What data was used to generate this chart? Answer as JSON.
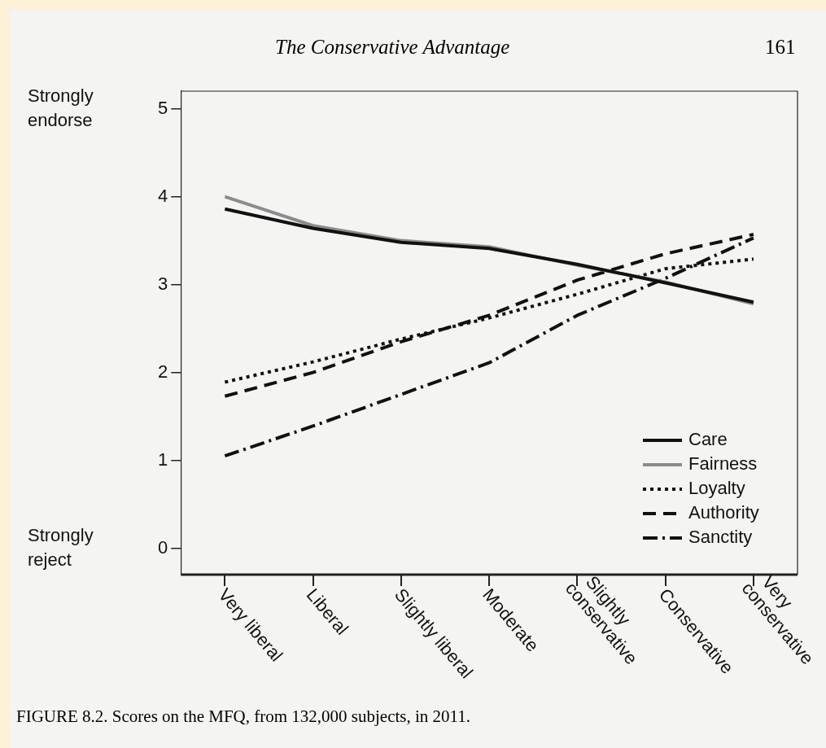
{
  "chart_data": {
    "type": "line",
    "title": "FIGURE 8.2. Scores on the MFQ, from 132,000 subjects, in 2011.",
    "annotations": [
      "The Conservative Advantage",
      "161",
      "Strongly endorse",
      "Strongly reject"
    ],
    "categories": [
      "Very liberal",
      "Liberal",
      "Slightly liberal",
      "Moderate",
      "Slightly conservative",
      "Conservative",
      "Very conservative"
    ],
    "series": [
      {
        "name": "Care",
        "color": "#111111",
        "line_style": "solid",
        "values": [
          3.86,
          3.64,
          3.48,
          3.41,
          3.23,
          3.02,
          2.8
        ]
      },
      {
        "name": "Fairness",
        "color": "#8c8c8c",
        "line_style": "solid",
        "values": [
          4.0,
          3.67,
          3.5,
          3.43,
          3.22,
          3.03,
          2.78
        ]
      },
      {
        "name": "Loyalty",
        "color": "#111111",
        "line_style": "dotted",
        "values": [
          1.89,
          2.12,
          2.38,
          2.62,
          2.89,
          3.18,
          3.29
        ]
      },
      {
        "name": "Authority",
        "color": "#111111",
        "line_style": "dashed",
        "values": [
          1.73,
          2.0,
          2.35,
          2.65,
          3.05,
          3.35,
          3.57
        ]
      },
      {
        "name": "Sanctity",
        "color": "#111111",
        "line_style": "dashdot",
        "values": [
          1.05,
          1.39,
          1.75,
          2.11,
          2.65,
          3.07,
          3.53
        ]
      }
    ],
    "ylim": [
      -0.3,
      5.2
    ],
    "yticks": [
      0,
      1,
      2,
      3,
      4,
      5
    ],
    "grid": false,
    "legend": "bottom right",
    "marker": "none"
  }
}
